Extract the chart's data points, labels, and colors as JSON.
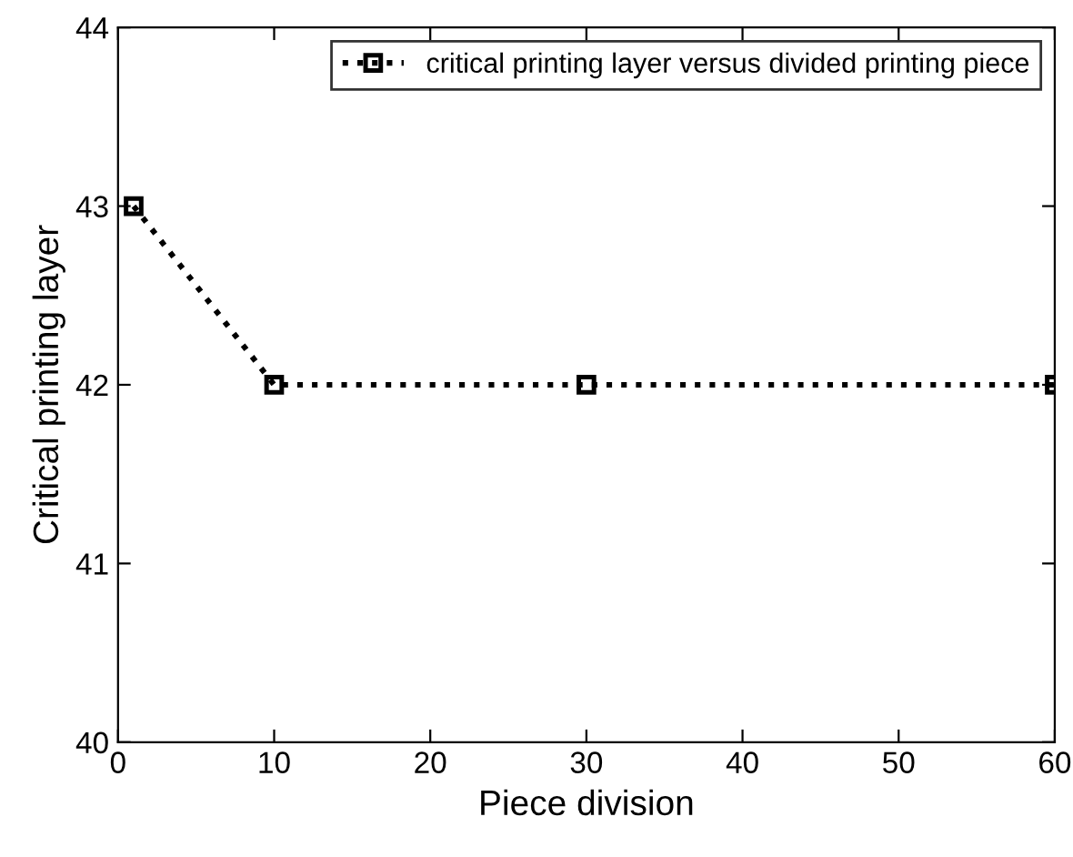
{
  "chart_data": {
    "type": "line",
    "xlabel": "Piece division",
    "ylabel": "Critical printing layer",
    "x": [
      1,
      10,
      30,
      60
    ],
    "series": [
      {
        "name": "critical printing layer versus divided printing piece",
        "color": "#000000",
        "values": [
          43,
          42,
          42,
          42
        ]
      }
    ],
    "xlim": [
      0,
      60
    ],
    "xticks": [
      0,
      10,
      20,
      30,
      40,
      50,
      60
    ],
    "ylim": [
      40,
      44
    ],
    "yticks": [
      40,
      41,
      42,
      43,
      44
    ],
    "grid": false,
    "legend": "top right",
    "marker": "square",
    "line_style": "dotted"
  }
}
